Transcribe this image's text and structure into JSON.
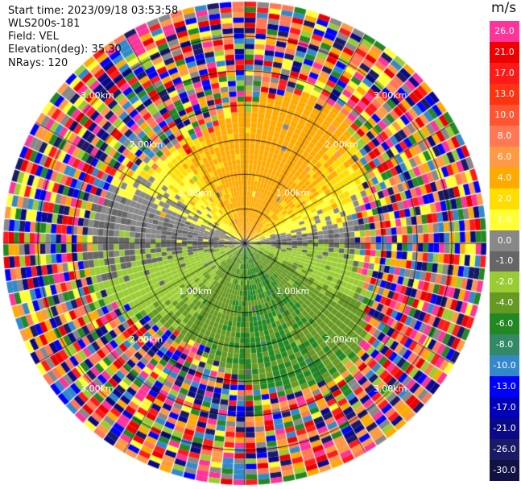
{
  "info": {
    "start_time": "Start time: 2023/09/18 03:53:58",
    "instrument": "WLS200s-181",
    "field": "Field: VEL",
    "elevation": "Elevation(deg): 35.30",
    "nrays": "NRays: 120"
  },
  "chart_data": {
    "type": "heatmap",
    "projection": "polar",
    "title": "",
    "range_rings_km": [
      0.5,
      1.0,
      1.5,
      2.0,
      2.5,
      3.0
    ],
    "ring_label_text": [
      "1.00km",
      "2.00km",
      "3.00km"
    ],
    "azimuth_spokes_deg": [
      0,
      30,
      60,
      90,
      120,
      150,
      180,
      210,
      240,
      270,
      300,
      330
    ],
    "n_rays": 120,
    "max_range_km": 3.5,
    "velocity_pattern": [
      {
        "sector": "north",
        "value_ms": 3.0
      },
      {
        "sector": "northeast",
        "value_ms": 1.5
      },
      {
        "sector": "east",
        "value_ms": 0.0
      },
      {
        "sector": "southeast",
        "value_ms": -3.0
      },
      {
        "sector": "south",
        "value_ms": -6.0
      },
      {
        "sector": "southwest",
        "value_ms": -3.0
      },
      {
        "sector": "west",
        "value_ms": 0.0
      },
      {
        "sector": "northwest",
        "value_ms": 1.5
      }
    ],
    "colorbar": {
      "title": "m/s",
      "ticks": [
        "26.0",
        "21.0",
        "17.0",
        "13.0",
        "10.0",
        "8.0",
        "6.0",
        "4.0",
        "2.0",
        "1.0",
        "0.0",
        "-1.0",
        "-2.0",
        "-4.0",
        "-6.0",
        "-8.0",
        "-10.0",
        "-13.0",
        "-17.0",
        "-21.0",
        "-26.0",
        "-30.0"
      ],
      "colors": [
        "#ff3399",
        "#ee0000",
        "#ff1a1a",
        "#ff3311",
        "#ff5533",
        "#ff7755",
        "#ff9944",
        "#ffaa00",
        "#ffdd00",
        "#ffff33",
        "#888888",
        "#666666",
        "#99cc33",
        "#669922",
        "#228822",
        "#338866",
        "#3388cc",
        "#0000ff",
        "#0000bb",
        "#0a0a88",
        "#1a1a66",
        "#111144"
      ]
    }
  }
}
